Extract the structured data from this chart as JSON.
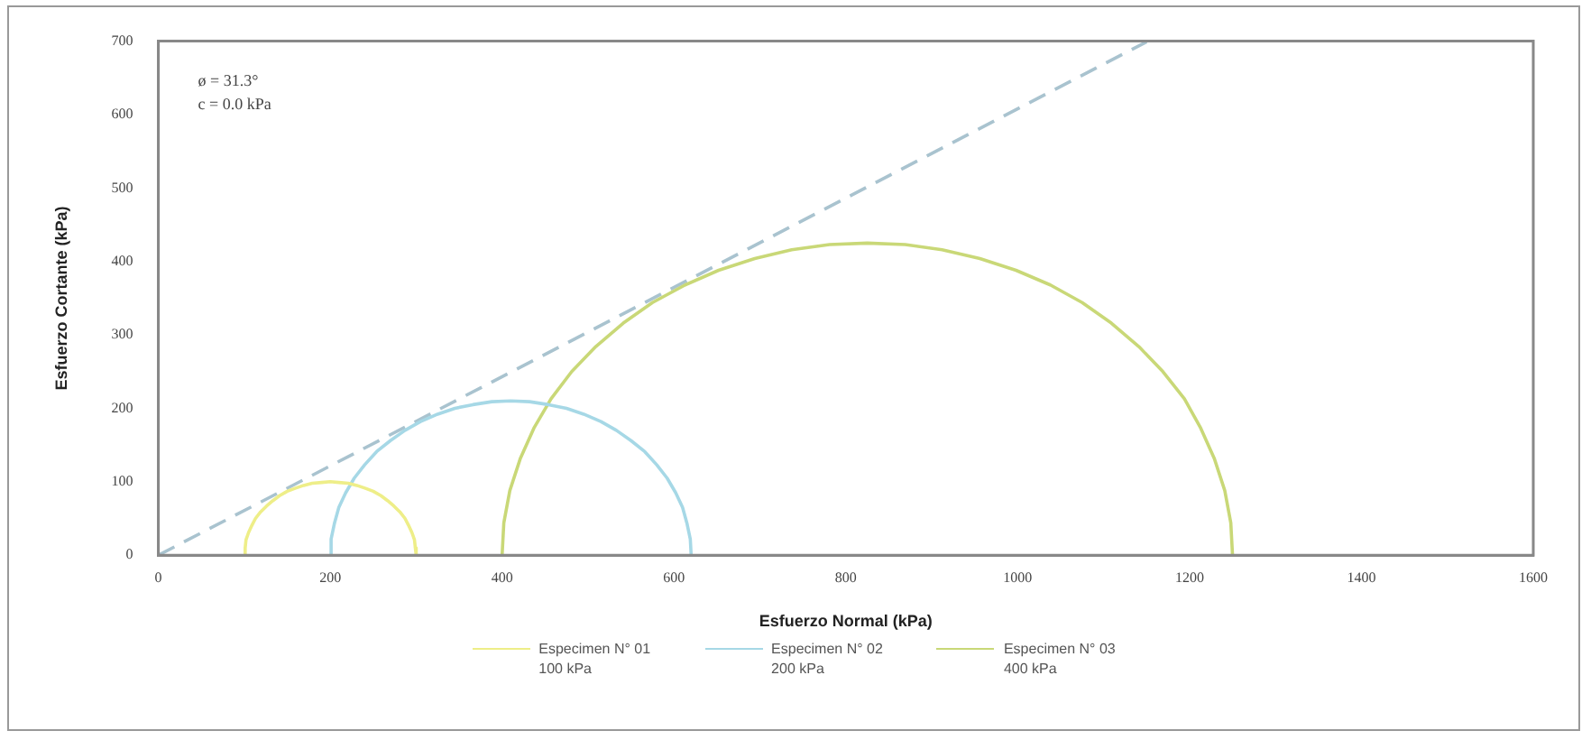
{
  "chart_data": {
    "type": "line",
    "xlabel": "Esfuerzo Normal (kPa)",
    "ylabel": "Esfuerzo Cortante (kPa)",
    "annotations": [
      "ø = 31.3°",
      "c = 0.0 kPa"
    ],
    "xlim": [
      0,
      1600
    ],
    "xticks": [
      0,
      200,
      400,
      600,
      800,
      1000,
      1200,
      1400,
      1600
    ],
    "ylim": [
      0,
      700
    ],
    "yticks": [
      0,
      100,
      200,
      300,
      400,
      500,
      600,
      700
    ],
    "grid": false,
    "legend": "bottom",
    "marker": "none",
    "series": [
      {
        "name": "Especimen N° 01\n100 kPa",
        "color": "#eeee88",
        "x": [
          100,
          101,
          102,
          105,
          109,
          113,
          119,
          126,
          133,
          141,
          150,
          159,
          169,
          179,
          190,
          200,
          210,
          221,
          231,
          241,
          250,
          259,
          267,
          274,
          281,
          287,
          291,
          295,
          298,
          299,
          300
        ],
        "values": [
          0,
          10,
          21,
          31,
          41,
          50,
          59,
          67,
          74,
          81,
          87,
          91,
          95,
          98,
          99,
          100,
          99,
          98,
          95,
          91,
          87,
          81,
          74,
          67,
          59,
          50,
          41,
          31,
          21,
          10,
          0
        ]
      },
      {
        "name": "Especimen N° 02\n200 kPa",
        "color": "#a6d8e6",
        "x": [
          200,
          201,
          205,
          210,
          218,
          228,
          240,
          254,
          270,
          287,
          305,
          325,
          345,
          366,
          388,
          410,
          432,
          454,
          475,
          495,
          515,
          533,
          550,
          566,
          580,
          592,
          602,
          610,
          615,
          619,
          620
        ],
        "values": [
          0,
          22,
          44,
          65,
          85,
          105,
          123,
          141,
          156,
          170,
          182,
          192,
          200,
          205,
          209,
          210,
          209,
          205,
          200,
          192,
          182,
          170,
          156,
          141,
          123,
          105,
          85,
          65,
          44,
          22,
          0
        ]
      },
      {
        "name": "Especimen N° 03\n400 kPa",
        "color": "#c9d877",
        "x": [
          400,
          402,
          409,
          421,
          437,
          457,
          481,
          509,
          541,
          575,
          613,
          652,
          694,
          737,
          781,
          825,
          869,
          912,
          956,
          998,
          1038,
          1075,
          1109,
          1141,
          1169,
          1194,
          1213,
          1229,
          1241,
          1248,
          1250
        ],
        "values": [
          0,
          44,
          88,
          131,
          173,
          213,
          250,
          284,
          316,
          344,
          368,
          388,
          404,
          416,
          423,
          425,
          423,
          416,
          404,
          388,
          368,
          344,
          316,
          284,
          250,
          213,
          173,
          131,
          88,
          44,
          0
        ]
      },
      {
        "color": "#a9c3cf",
        "line_style": "dashed",
        "x": [
          0,
          1150
        ],
        "values": [
          0,
          699
        ]
      }
    ]
  }
}
